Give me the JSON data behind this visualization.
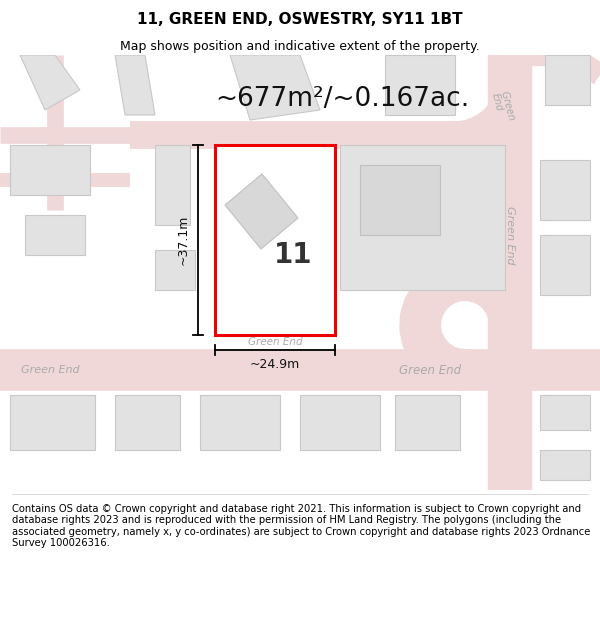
{
  "title": "11, GREEN END, OSWESTRY, SY11 1BT",
  "subtitle": "Map shows position and indicative extent of the property.",
  "area_text": "~677m²/~0.167ac.",
  "width_label": "~24.9m",
  "height_label": "~37.1m",
  "street_bottom_left": "Green End",
  "street_bottom_center": "Green End",
  "street_bottom_right": "Green End",
  "street_right_vertical": "Green End",
  "street_right_upper": "Green End",
  "property_number": "11",
  "footer": "Contains OS data © Crown copyright and database right 2021. This information is subject to Crown copyright and database rights 2023 and is reproduced with the permission of HM Land Registry. The polygons (including the associated geometry, namely x, y co-ordinates) are subject to Crown copyright and database rights 2023 Ordnance Survey 100026316.",
  "bg_color": "#ffffff",
  "map_bg": "#f7f7f7",
  "road_color": "#f0d8d8",
  "road_outline": "#e8b8b8",
  "building_fill": "#e0e0e0",
  "building_edge": "#cccccc",
  "plot_outline_color": "#ee0000",
  "plot_fill": "#ffffff",
  "street_label_color": "#aaaaaa",
  "title_fontsize": 11,
  "subtitle_fontsize": 9,
  "area_fontsize": 19,
  "number_fontsize": 20,
  "footer_fontsize": 7.2
}
